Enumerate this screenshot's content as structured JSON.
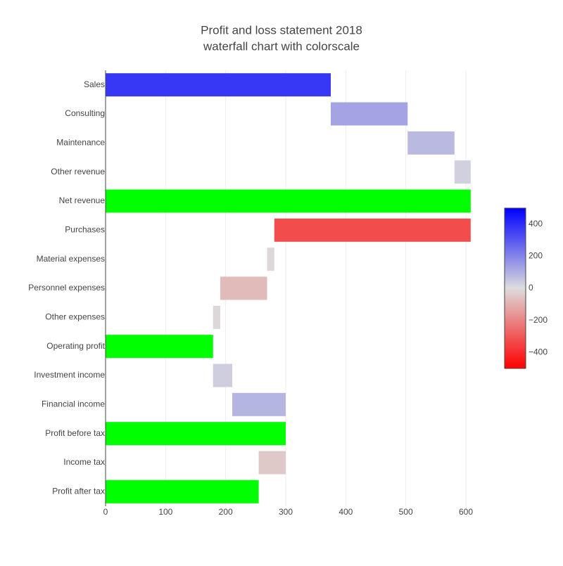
{
  "chart_data": {
    "type": "waterfall",
    "orientation": "h",
    "title": "Profit and loss statement 2018",
    "subtitle": "waterfall chart with colorscale",
    "categories": [
      "Sales",
      "Consulting",
      "Maintenance",
      "Other revenue",
      "Net revenue",
      "Purchases",
      "Material expenses",
      "Personnel expenses",
      "Other expenses",
      "Operating profit",
      "Investment income",
      "Financial income",
      "Profit before tax",
      "Income tax",
      "Profit after tax"
    ],
    "measure": [
      "relative",
      "relative",
      "relative",
      "relative",
      "total",
      "relative",
      "relative",
      "relative",
      "relative",
      "total",
      "relative",
      "relative",
      "total",
      "relative",
      "total"
    ],
    "values": [
      375,
      128,
      78,
      27,
      null,
      -327,
      -12,
      -78,
      -12,
      null,
      32,
      89,
      null,
      -45,
      null
    ],
    "total_color": "#00ff00",
    "colorscale": [
      [
        0,
        "#ff0000"
      ],
      [
        0.5,
        "#dcdcdc"
      ],
      [
        1,
        "#0000ff"
      ]
    ],
    "clim": [
      -500,
      500
    ],
    "colorbar_ticks": [
      400,
      200,
      0,
      {
        "value": -200,
        "label": "−200"
      },
      {
        "value": -400,
        "label": "−400"
      }
    ],
    "xlim": [
      0,
      608
    ],
    "xticks": [
      0,
      100,
      200,
      300,
      400,
      500,
      600
    ],
    "grid": true
  }
}
